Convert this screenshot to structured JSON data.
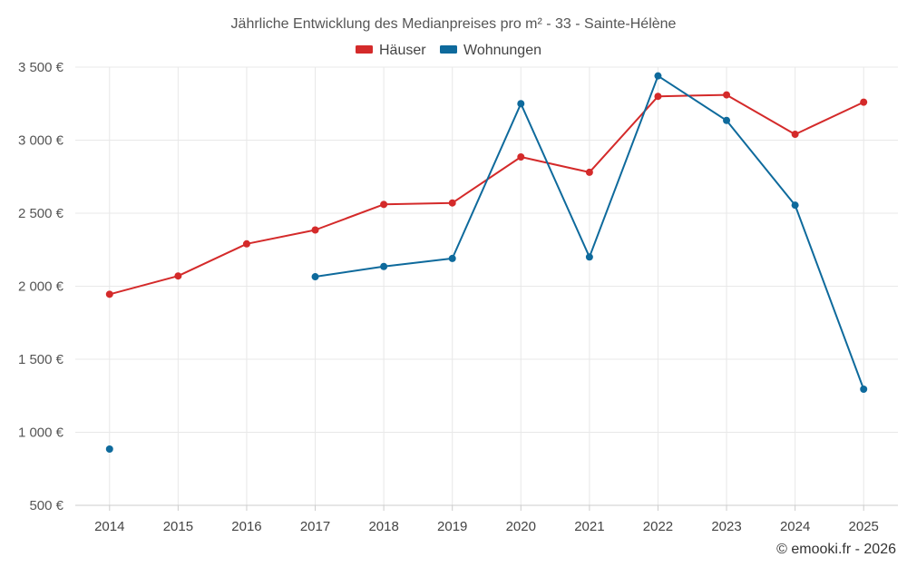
{
  "chart_data": {
    "type": "line",
    "title": "Jährliche Entwicklung des Medianpreises pro m² - 33 - Sainte-Hélène",
    "categories": [
      "2014",
      "2015",
      "2016",
      "2017",
      "2018",
      "2019",
      "2020",
      "2021",
      "2022",
      "2023",
      "2024",
      "2025"
    ],
    "series": [
      {
        "name": "Häuser",
        "color": "#d42a2a",
        "values": [
          1945,
          2070,
          2290,
          2385,
          2560,
          2570,
          2885,
          2780,
          3300,
          3310,
          3040,
          3260
        ]
      },
      {
        "name": "Wohnungen",
        "color": "#0e6a9c",
        "values": [
          885,
          null,
          null,
          2065,
          2135,
          2190,
          3250,
          2200,
          3440,
          3135,
          2555,
          1295
        ]
      }
    ],
    "ylim": [
      500,
      3500
    ],
    "yticks": [
      500,
      1000,
      1500,
      2000,
      2500,
      3000,
      3500
    ],
    "ytick_labels": [
      "500 €",
      "1 000 €",
      "1 500 €",
      "2 000 €",
      "2 500 €",
      "3 000 €",
      "3 500 €"
    ],
    "xlabel": "",
    "ylabel": "",
    "legend_position": "top-center",
    "grid": true
  },
  "credit": "© emooki.fr - 2026"
}
